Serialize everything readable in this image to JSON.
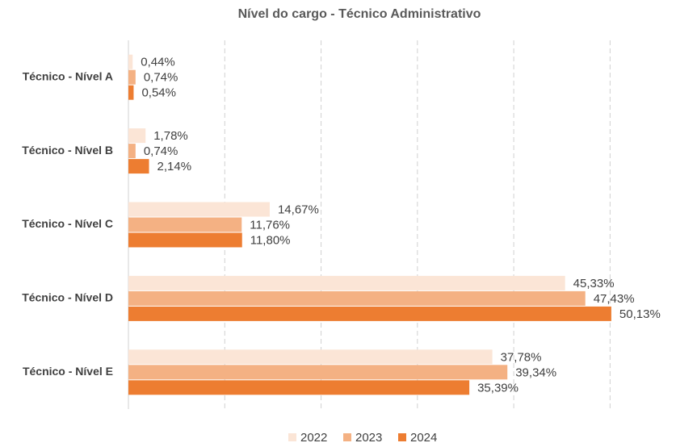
{
  "chart_data": {
    "type": "hbar",
    "title": "Nível do cargo - Técnico Administrativo",
    "categories": [
      "Técnico - Nível A",
      "Técnico - Nível B",
      "Técnico - Nível C",
      "Técnico - Nível D",
      "Técnico - Nível E"
    ],
    "series": [
      {
        "name": "2022",
        "color": "#fbe5d6",
        "values": [
          0.44,
          1.78,
          14.67,
          45.33,
          37.78
        ],
        "value_labels": [
          "0,44%",
          "1,78%",
          "14,67%",
          "45,33%",
          "37,78%"
        ]
      },
      {
        "name": "2023",
        "color": "#f4b183",
        "values": [
          0.74,
          0.74,
          11.76,
          47.43,
          39.34
        ],
        "value_labels": [
          "0,74%",
          "0,74%",
          "11,76%",
          "47,43%",
          "39,34%"
        ]
      },
      {
        "name": "2024",
        "color": "#ed7d31",
        "values": [
          0.54,
          2.14,
          11.8,
          50.13,
          35.39
        ],
        "value_labels": [
          "0,54%",
          "2,14%",
          "11,80%",
          "50,13%",
          "35,39%"
        ]
      }
    ],
    "xlim": [
      0,
      55
    ],
    "xticks": [
      0,
      10,
      20,
      30,
      40,
      50
    ],
    "grid": true,
    "legend": "bottom"
  }
}
